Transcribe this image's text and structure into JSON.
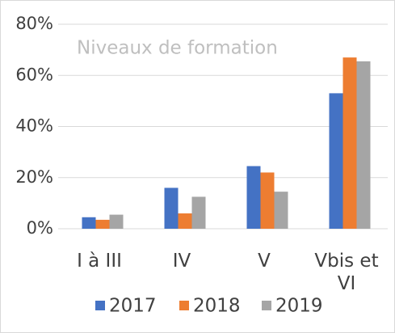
{
  "chart_data": {
    "type": "bar",
    "title": "Niveaux de formation",
    "categories": [
      "I à III",
      "IV",
      "V",
      "Vbis et VI"
    ],
    "series": [
      {
        "name": "2017",
        "color": "#4472c4",
        "values": [
          4.5,
          16,
          24.5,
          53
        ]
      },
      {
        "name": "2018",
        "color": "#ed7d31",
        "values": [
          3.5,
          6,
          22,
          67
        ]
      },
      {
        "name": "2019",
        "color": "#a5a5a5",
        "values": [
          5.5,
          12.5,
          14.5,
          65.5
        ]
      }
    ],
    "ylim": [
      0,
      80
    ],
    "yticks": [
      {
        "value": 0,
        "label": "0%"
      },
      {
        "value": 20,
        "label": "20%"
      },
      {
        "value": 40,
        "label": "40%"
      },
      {
        "value": 60,
        "label": "60%"
      },
      {
        "value": 80,
        "label": "80%"
      }
    ],
    "grid": true,
    "legend": "bottom"
  }
}
